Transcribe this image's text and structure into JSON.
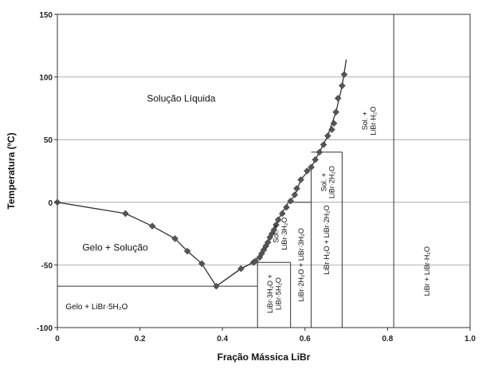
{
  "chart_data": {
    "type": "scatter",
    "title": "",
    "xlabel": "Fração Mássica LiBr",
    "ylabel": "Temperatura (ºC)",
    "xlim": [
      0,
      1.0
    ],
    "ylim": [
      -100,
      150
    ],
    "xticks": [
      0,
      0.2,
      0.4,
      0.6,
      0.8,
      1.0
    ],
    "xtick_labels": [
      "0",
      "0.2",
      "0.4",
      "0.6",
      "0.8",
      "1.0"
    ],
    "yticks": [
      -100,
      -50,
      0,
      50,
      100,
      150
    ],
    "ytick_labels": [
      "-100",
      "-50",
      "0",
      "50",
      "100",
      "150"
    ],
    "grid": "horizontal",
    "series": [
      {
        "type": "scatter",
        "marker": "diamond",
        "x": [
          0.0,
          0.165,
          0.23,
          0.285,
          0.315,
          0.35,
          0.385,
          0.445,
          0.475,
          0.48,
          0.49,
          0.495,
          0.5,
          0.505,
          0.51,
          0.515,
          0.52,
          0.525,
          0.53,
          0.535,
          0.545,
          0.555,
          0.565,
          0.575,
          0.58,
          0.59,
          0.605,
          0.615,
          0.625,
          0.635,
          0.645,
          0.655,
          0.665,
          0.67,
          0.675,
          0.68,
          0.69,
          0.695
        ],
        "y": [
          0,
          -9,
          -19,
          -29,
          -39,
          -49,
          -67,
          -53,
          -48,
          -47,
          -44,
          -41,
          -38,
          -35,
          -32,
          -28,
          -25,
          -22,
          -18,
          -14,
          -9,
          -4,
          1,
          6,
          11,
          18,
          25,
          28,
          34,
          40,
          46,
          53,
          58,
          63,
          72,
          83,
          93,
          102
        ]
      },
      {
        "type": "line",
        "x": [
          0.0,
          0.165,
          0.23,
          0.285,
          0.315,
          0.35,
          0.385,
          0.445,
          0.475,
          0.485
        ],
        "y": [
          0,
          -9,
          -19,
          -29,
          -39,
          -49,
          -67,
          -53,
          -48,
          -47
        ]
      },
      {
        "type": "line",
        "x": [
          0.385,
          0.445,
          0.48,
          0.5,
          0.52,
          0.54,
          0.56,
          0.575,
          0.59,
          0.615,
          0.635,
          0.655,
          0.675,
          0.69,
          0.7
        ],
        "y": [
          -67,
          -53,
          -47,
          -38,
          -25,
          -11,
          0,
          5,
          18,
          28,
          40,
          53,
          72,
          93,
          114
        ]
      }
    ],
    "phase_boundaries": [
      {
        "x": [
          0.0,
          0.485
        ],
        "y": [
          -67,
          -67
        ]
      },
      {
        "x": [
          0.485,
          0.485
        ],
        "y": [
          -100,
          -47
        ]
      },
      {
        "x": [
          0.485,
          0.565
        ],
        "y": [
          -48,
          -48
        ]
      },
      {
        "x": [
          0.565,
          0.565
        ],
        "y": [
          -100,
          -48
        ]
      },
      {
        "x": [
          0.565,
          0.615
        ],
        "y": [
          0,
          0
        ]
      },
      {
        "x": [
          0.615,
          0.615
        ],
        "y": [
          -100,
          28
        ]
      },
      {
        "x": [
          0.615,
          0.69
        ],
        "y": [
          40,
          40
        ]
      },
      {
        "x": [
          0.69,
          0.69
        ],
        "y": [
          -100,
          40
        ]
      },
      {
        "x": [
          0.815,
          0.815
        ],
        "y": [
          -100,
          150
        ]
      }
    ],
    "annotations": [
      {
        "lines": [
          "Solução Líquida"
        ],
        "x": 0.3,
        "y": 83,
        "size": 12,
        "rotate": 0,
        "anchor": "middle"
      },
      {
        "lines": [
          "Gelo + Solução"
        ],
        "x": 0.14,
        "y": -36,
        "size": 12,
        "rotate": 0,
        "anchor": "middle"
      },
      {
        "lines": [
          "Gelo + LiBr·5H₂O"
        ],
        "x": 0.02,
        "y": -83,
        "size": 10,
        "rotate": 0,
        "anchor": "start"
      },
      {
        "lines": [
          "Sol. +",
          "LiBr·H₂O"
        ],
        "x": 0.755,
        "y": 65,
        "size": 9,
        "rotate": -90,
        "anchor": "middle"
      },
      {
        "lines": [
          "Sol. +",
          "LiBr·2H₂O"
        ],
        "x": 0.655,
        "y": 16,
        "size": 9,
        "rotate": -90,
        "anchor": "middle"
      },
      {
        "lines": [
          "Sol. +",
          "LiBr·3H₂O"
        ],
        "x": 0.54,
        "y": -25,
        "size": 9,
        "rotate": -90,
        "anchor": "middle"
      },
      {
        "lines": [
          "LiBr·3H₂O +",
          "LiBr·5H₂O"
        ],
        "x": 0.525,
        "y": -73,
        "size": 9,
        "rotate": -90,
        "anchor": "middle"
      },
      {
        "lines": [
          "LiBr·2H₂O + LiBr·3H₂O"
        ],
        "x": 0.59,
        "y": -50,
        "size": 9,
        "rotate": -90,
        "anchor": "middle"
      },
      {
        "lines": [
          "LiBr·H₂O + LiBr·2H₂O"
        ],
        "x": 0.652,
        "y": -30,
        "size": 9,
        "rotate": -90,
        "anchor": "middle"
      },
      {
        "lines": [
          "LiBr + LiBr·H₂O"
        ],
        "x": 0.895,
        "y": -55,
        "size": 9,
        "rotate": -90,
        "anchor": "middle"
      }
    ]
  }
}
